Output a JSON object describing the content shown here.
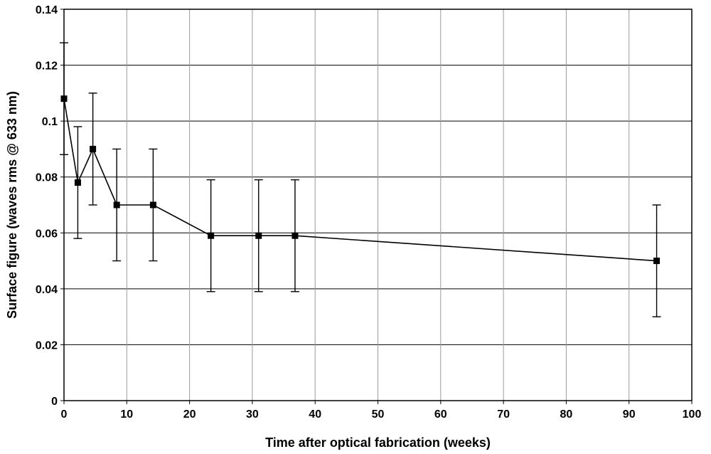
{
  "chart_data": {
    "type": "line",
    "xlabel": "Time after optical fabrication (weeks)",
    "ylabel": "Surface figure (waves rms @ 633 nm)",
    "xlim": [
      0,
      100
    ],
    "ylim": [
      0,
      0.14
    ],
    "x_ticks": [
      "0",
      "10",
      "20",
      "30",
      "40",
      "50",
      "60",
      "70",
      "80",
      "90",
      "100"
    ],
    "y_ticks": [
      "0",
      "0.02",
      "0.04",
      "0.06",
      "0.08",
      "0.1",
      "0.12",
      "0.14"
    ],
    "grid": true,
    "series": [
      {
        "x": [
          0,
          2.2,
          4.6,
          8.4,
          14.2,
          23.4,
          31,
          36.8,
          94.4
        ],
        "y": [
          0.108,
          0.078,
          0.09,
          0.07,
          0.07,
          0.059,
          0.059,
          0.059,
          0.05
        ],
        "error": [
          0.02,
          0.02,
          0.02,
          0.02,
          0.02,
          0.02,
          0.02,
          0.02,
          0.02
        ],
        "marker": "square",
        "color": "#000000"
      }
    ]
  }
}
